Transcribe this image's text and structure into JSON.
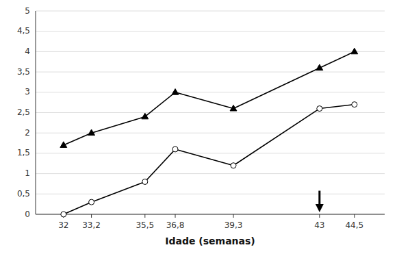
{
  "chart_data": {
    "type": "line",
    "x": [
      32,
      33.2,
      35.5,
      36.8,
      39.3,
      43,
      44.5
    ],
    "series": [
      {
        "color": "#000000",
        "marker": "triangle",
        "values": [
          1.7,
          2.0,
          2.4,
          3.0,
          2.6,
          3.6,
          4.0
        ]
      },
      {
        "color": "#000000",
        "marker": "open-circle",
        "values": [
          0.0,
          0.3,
          0.8,
          1.6,
          1.2,
          2.6,
          2.7
        ]
      }
    ],
    "xlabel": "Idade (semanas)",
    "xlim": [
      30.8,
      45.8
    ],
    "xticks": [
      32,
      {
        "value": 33.2,
        "label": "33,2"
      },
      {
        "value": 35.5,
        "label": "35,5"
      },
      {
        "value": 36.8,
        "label": "36,8"
      },
      {
        "value": 39.3,
        "label": "39,3"
      },
      43,
      {
        "value": 44.5,
        "label": "44,5"
      }
    ],
    "ylim": [
      0,
      5
    ],
    "yticks": [
      0,
      {
        "value": 0.5,
        "label": "0,5"
      },
      1,
      {
        "value": 1.5,
        "label": "1,5"
      },
      2,
      {
        "value": 2.5,
        "label": "2,5"
      },
      3,
      {
        "value": 3.5,
        "label": "3,5"
      },
      4,
      {
        "value": 4.5,
        "label": "4,5"
      },
      5
    ],
    "grid": true,
    "annotations": [
      {
        "x": 43,
        "y_from": 0.58,
        "y_to": 0.05,
        "color": "#000000"
      }
    ]
  }
}
